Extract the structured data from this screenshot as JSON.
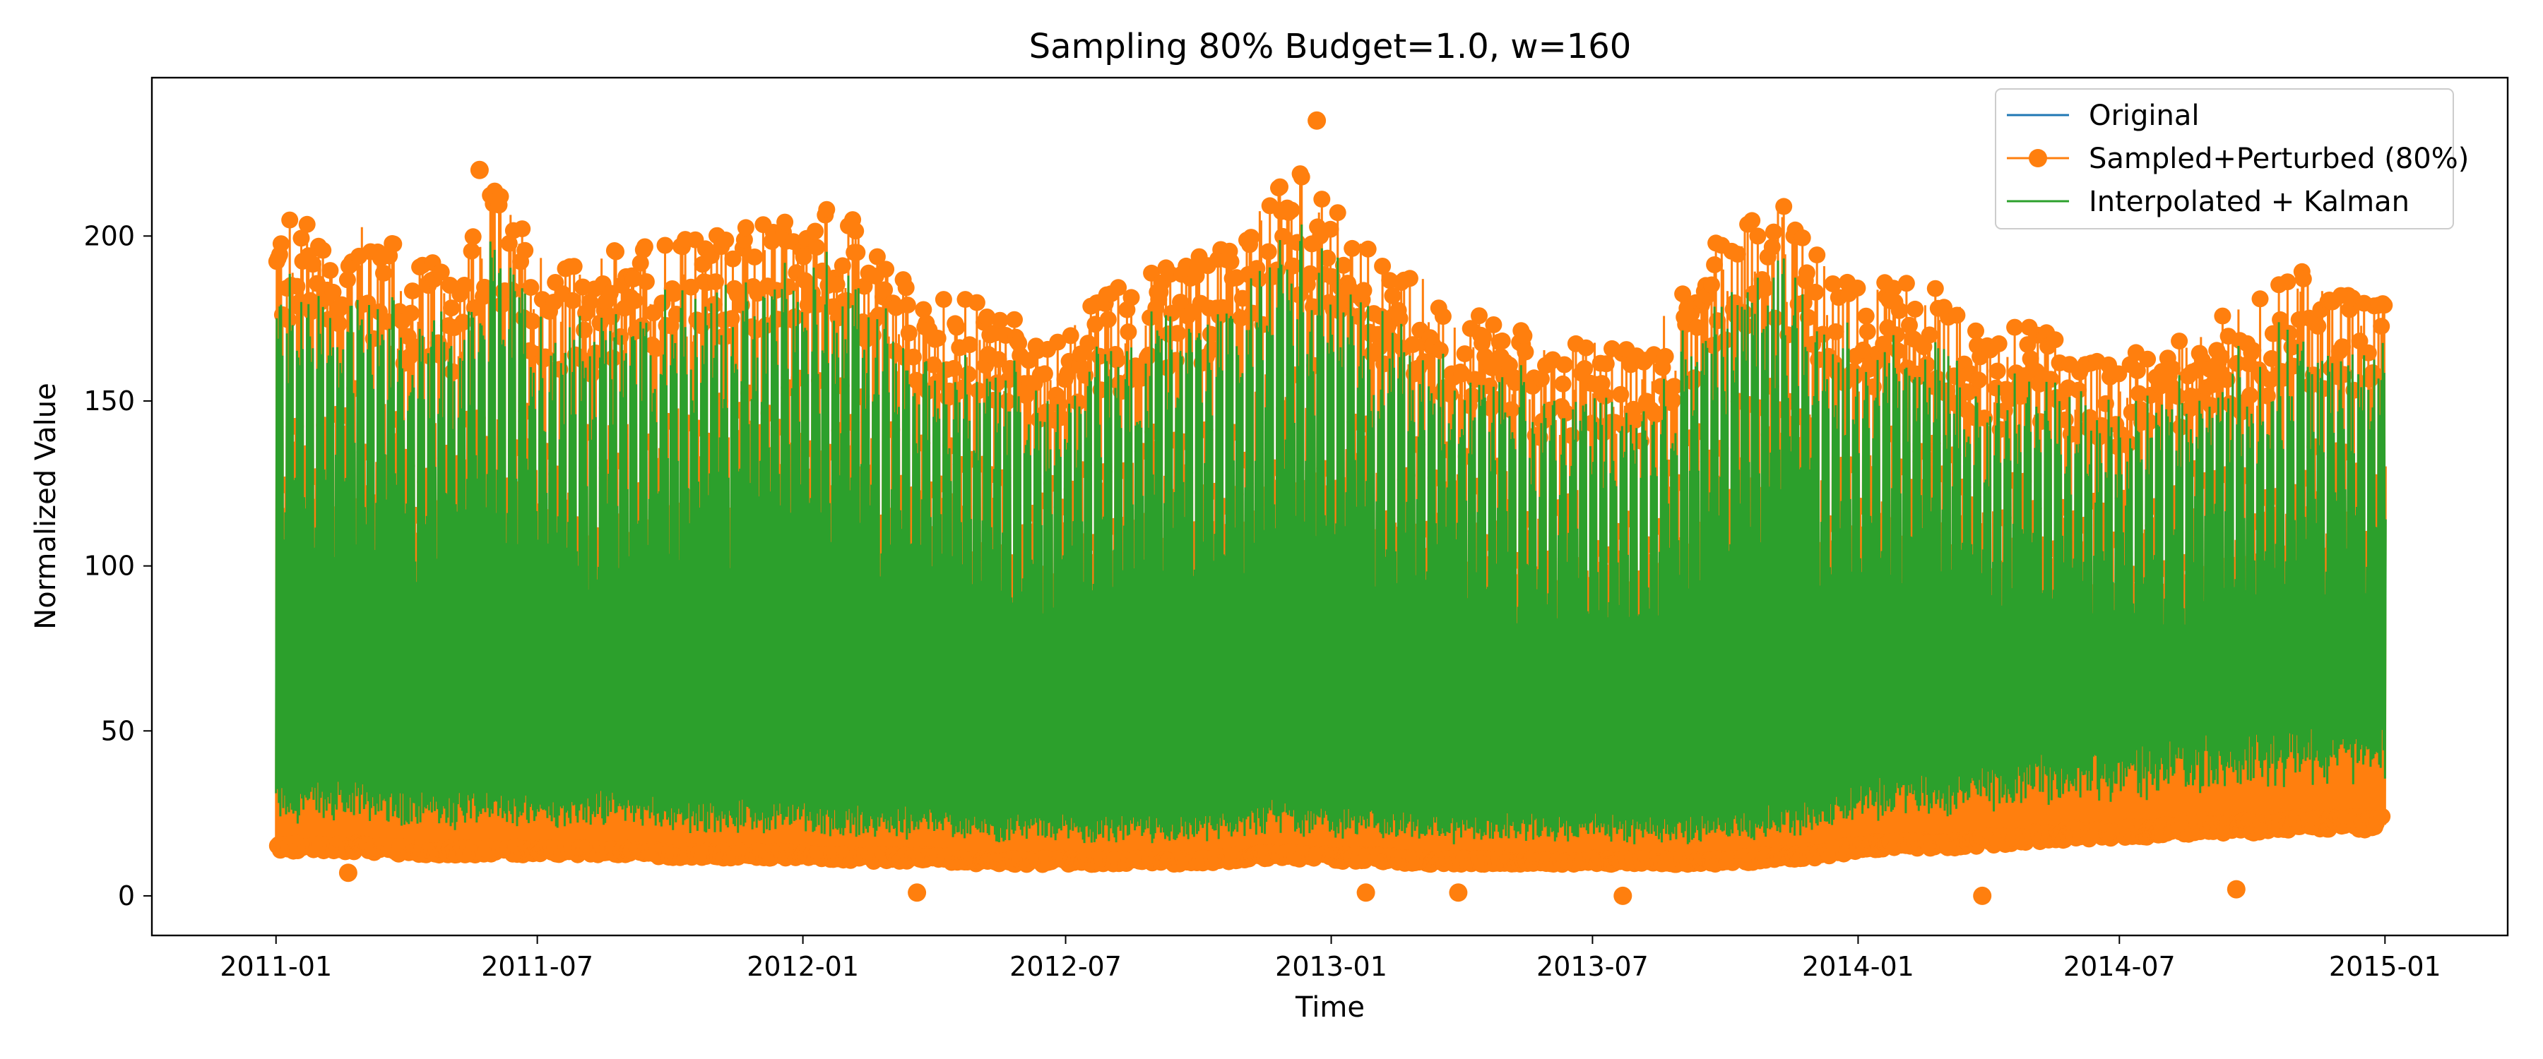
{
  "chart_data": {
    "type": "line",
    "title": "Sampling 80%  Budget=1.0, w=160",
    "xlabel": "Time",
    "ylabel": "Normalized Value",
    "xlim": [
      "2010-10-07",
      "2015-03-27"
    ],
    "ylim": [
      -12,
      248
    ],
    "x_ticks": [
      "2011-01",
      "2011-07",
      "2012-01",
      "2012-07",
      "2013-01",
      "2013-07",
      "2014-01",
      "2014-07",
      "2015-01"
    ],
    "y_ticks": [
      0,
      50,
      100,
      150,
      200
    ],
    "x_range": [
      "2011-01-01",
      "2015-01-01"
    ],
    "legend_position": "top-right",
    "grid": false,
    "series": [
      {
        "name": "Original",
        "color": "#1f77b4",
        "marker": "none"
      },
      {
        "name": "Sampled+Perturbed (80%)",
        "color": "#ff7f0e",
        "marker": "circle"
      },
      {
        "name": "Interpolated + Kalman",
        "color": "#2ca02c",
        "marker": "none"
      }
    ],
    "envelope": {
      "dates": [
        "2011-01-01",
        "2011-02-01",
        "2011-03-01",
        "2011-04-01",
        "2011-05-01",
        "2011-06-01",
        "2011-07-01",
        "2011-08-01",
        "2011-09-01",
        "2011-10-01",
        "2011-11-01",
        "2011-12-01",
        "2012-01-01",
        "2012-02-01",
        "2012-03-01",
        "2012-04-01",
        "2012-05-01",
        "2012-06-01",
        "2012-07-01",
        "2012-08-01",
        "2012-09-01",
        "2012-10-01",
        "2012-11-01",
        "2012-12-01",
        "2013-01-01",
        "2013-02-01",
        "2013-03-01",
        "2013-04-01",
        "2013-05-01",
        "2013-06-01",
        "2013-07-01",
        "2013-08-01",
        "2013-09-01",
        "2013-10-01",
        "2013-11-01",
        "2013-12-01",
        "2014-01-01",
        "2014-02-01",
        "2014-03-01",
        "2014-04-01",
        "2014-05-01",
        "2014-06-01",
        "2014-07-01",
        "2014-08-01",
        "2014-09-01",
        "2014-10-01",
        "2014-11-01",
        "2014-12-01",
        "2015-01-01"
      ],
      "upper": [
        205,
        208,
        206,
        195,
        192,
        215,
        198,
        190,
        200,
        198,
        205,
        205,
        210,
        212,
        190,
        185,
        180,
        175,
        172,
        185,
        190,
        195,
        200,
        225,
        210,
        195,
        190,
        180,
        175,
        165,
        170,
        165,
        185,
        205,
        215,
        195,
        185,
        190,
        185,
        170,
        175,
        165,
        165,
        170,
        175,
        180,
        190,
        185,
        180
      ],
      "lower": [
        14,
        14,
        14,
        13,
        13,
        13,
        13,
        13,
        13,
        12,
        12,
        12,
        12,
        11,
        11,
        11,
        10,
        10,
        10,
        10,
        10,
        10,
        11,
        12,
        11,
        11,
        10,
        10,
        10,
        10,
        10,
        10,
        10,
        10,
        11,
        12,
        14,
        15,
        15,
        16,
        17,
        18,
        18,
        19,
        20,
        20,
        21,
        21,
        21
      ]
    },
    "annotations": [
      {
        "series": "Sampled+Perturbed (80%)",
        "date": "2012-03-20",
        "value": 1
      },
      {
        "series": "Sampled+Perturbed (80%)",
        "date": "2013-01-25",
        "value": 1
      },
      {
        "series": "Sampled+Perturbed (80%)",
        "date": "2013-03-30",
        "value": 1
      },
      {
        "series": "Sampled+Perturbed (80%)",
        "date": "2013-07-22",
        "value": 0
      },
      {
        "series": "Sampled+Perturbed (80%)",
        "date": "2014-03-28",
        "value": 0
      },
      {
        "series": "Sampled+Perturbed (80%)",
        "date": "2014-09-20",
        "value": 2
      },
      {
        "series": "Sampled+Perturbed (80%)",
        "date": "2011-02-20",
        "value": 7
      },
      {
        "series": "Sampled+Perturbed (80%)",
        "date": "2012-12-22",
        "value": 235
      },
      {
        "series": "Sampled+Perturbed (80%)",
        "date": "2011-05-22",
        "value": 220
      }
    ]
  }
}
